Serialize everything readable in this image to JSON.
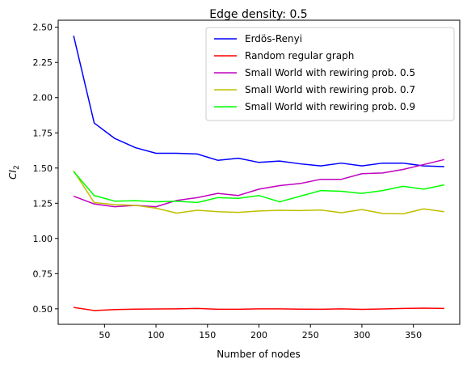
{
  "chart_data": {
    "type": "line",
    "title": "Edge density: 0.5",
    "xlabel": "Number of nodes",
    "ylabel_main": "CI",
    "ylabel_sub": "2",
    "xlim": [
      5,
      395
    ],
    "ylim": [
      0.39,
      2.55
    ],
    "xticks": [
      50,
      100,
      150,
      200,
      250,
      300,
      350
    ],
    "xtick_labels": [
      "50",
      "100",
      "150",
      "200",
      "250",
      "300",
      "350"
    ],
    "yticks": [
      0.5,
      0.75,
      1.0,
      1.25,
      1.5,
      1.75,
      2.0,
      2.25,
      2.5
    ],
    "ytick_labels": [
      "0.50",
      "0.75",
      "1.00",
      "1.25",
      "1.50",
      "1.75",
      "2.00",
      "2.25",
      "2.50"
    ],
    "grid": false,
    "legend_position": "upper right",
    "x": [
      20,
      40,
      60,
      80,
      100,
      120,
      140,
      160,
      180,
      200,
      220,
      240,
      260,
      280,
      300,
      320,
      340,
      360,
      380
    ],
    "series": [
      {
        "name": "Erdös-Renyi",
        "color": "#0000ff",
        "values": [
          2.44,
          1.82,
          1.71,
          1.645,
          1.605,
          1.605,
          1.6,
          1.555,
          1.57,
          1.54,
          1.55,
          1.53,
          1.515,
          1.535,
          1.515,
          1.535,
          1.535,
          1.515,
          1.51
        ]
      },
      {
        "name": "Random regular graph",
        "color": "#ff0000",
        "values": [
          0.51,
          0.488,
          0.495,
          0.498,
          0.499,
          0.5,
          0.503,
          0.497,
          0.497,
          0.5,
          0.5,
          0.498,
          0.497,
          0.5,
          0.496,
          0.499,
          0.503,
          0.505,
          0.503
        ]
      },
      {
        "name": "Small World with rewiring prob. 0.5",
        "color": "#c000c0",
        "values": [
          1.3,
          1.245,
          1.225,
          1.235,
          1.225,
          1.27,
          1.29,
          1.32,
          1.305,
          1.35,
          1.375,
          1.39,
          1.42,
          1.42,
          1.46,
          1.465,
          1.49,
          1.525,
          1.56
        ]
      },
      {
        "name": "Small World with rewiring prob. 0.7",
        "color": "#bfbf00",
        "values": [
          1.48,
          1.255,
          1.24,
          1.235,
          1.215,
          1.18,
          1.2,
          1.19,
          1.185,
          1.195,
          1.2,
          1.198,
          1.202,
          1.183,
          1.205,
          1.178,
          1.175,
          1.21,
          1.19
        ]
      },
      {
        "name": "Small World with rewiring prob. 0.9",
        "color": "#00ff00",
        "values": [
          1.475,
          1.305,
          1.265,
          1.268,
          1.26,
          1.265,
          1.255,
          1.29,
          1.285,
          1.305,
          1.26,
          1.3,
          1.34,
          1.335,
          1.32,
          1.34,
          1.37,
          1.35,
          1.38
        ]
      }
    ]
  }
}
